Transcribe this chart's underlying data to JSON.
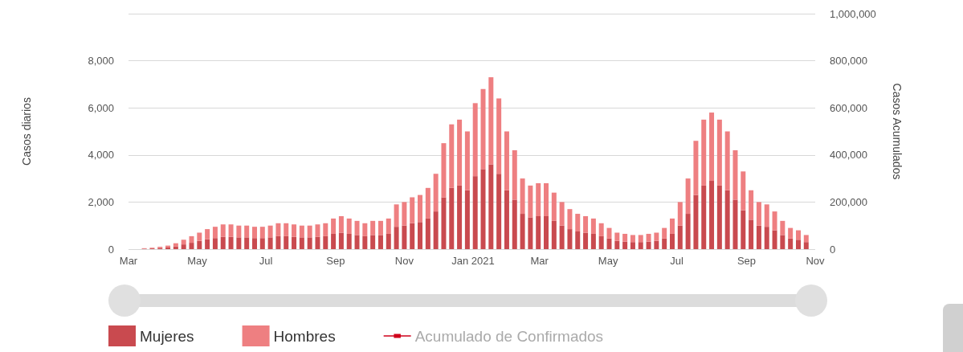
{
  "chart_data": {
    "type": "bar",
    "stacked": true,
    "ylabel": "Casos diarios",
    "y2label": "Casos Acumulados",
    "x": [
      "2020-03-01",
      "2020-03-08",
      "2020-03-15",
      "2020-03-22",
      "2020-03-29",
      "2020-04-05",
      "2020-04-12",
      "2020-04-19",
      "2020-04-26",
      "2020-05-03",
      "2020-05-10",
      "2020-05-17",
      "2020-05-24",
      "2020-05-31",
      "2020-06-07",
      "2020-06-14",
      "2020-06-21",
      "2020-06-28",
      "2020-07-05",
      "2020-07-12",
      "2020-07-19",
      "2020-07-26",
      "2020-08-02",
      "2020-08-09",
      "2020-08-16",
      "2020-08-23",
      "2020-08-30",
      "2020-09-06",
      "2020-09-13",
      "2020-09-20",
      "2020-09-27",
      "2020-10-04",
      "2020-10-11",
      "2020-10-18",
      "2020-10-25",
      "2020-11-01",
      "2020-11-08",
      "2020-11-15",
      "2020-11-22",
      "2020-11-29",
      "2020-12-06",
      "2020-12-13",
      "2020-12-20",
      "2020-12-27",
      "2021-01-03",
      "2021-01-10",
      "2021-01-17",
      "2021-01-24",
      "2021-01-31",
      "2021-02-07",
      "2021-02-14",
      "2021-02-21",
      "2021-02-28",
      "2021-03-07",
      "2021-03-14",
      "2021-03-21",
      "2021-03-28",
      "2021-04-04",
      "2021-04-11",
      "2021-04-18",
      "2021-04-25",
      "2021-05-02",
      "2021-05-09",
      "2021-05-16",
      "2021-05-23",
      "2021-05-30",
      "2021-06-06",
      "2021-06-13",
      "2021-06-20",
      "2021-06-27",
      "2021-07-04",
      "2021-07-11",
      "2021-07-18",
      "2021-07-25",
      "2021-08-01",
      "2021-08-08",
      "2021-08-15",
      "2021-08-22",
      "2021-08-29",
      "2021-09-05",
      "2021-09-12",
      "2021-09-19",
      "2021-09-26",
      "2021-10-03",
      "2021-10-10",
      "2021-10-17",
      "2021-10-24"
    ],
    "series": [
      {
        "name": "Mujeres",
        "color": "#c94a4f",
        "values": [
          0,
          0,
          20,
          30,
          50,
          70,
          120,
          200,
          270,
          350,
          420,
          470,
          520,
          520,
          500,
          500,
          470,
          470,
          500,
          550,
          550,
          520,
          500,
          500,
          520,
          550,
          650,
          700,
          650,
          600,
          550,
          600,
          600,
          650,
          950,
          1000,
          1100,
          1150,
          1300,
          1600,
          2200,
          2600,
          2700,
          2500,
          3100,
          3400,
          3600,
          3200,
          2500,
          2100,
          1500,
          1350,
          1400,
          1400,
          1200,
          1000,
          850,
          750,
          700,
          650,
          550,
          450,
          350,
          320,
          300,
          300,
          320,
          350,
          450,
          650,
          1000,
          1500,
          2300,
          2700,
          2900,
          2700,
          2500,
          2100,
          1650,
          1250,
          1000,
          950,
          800,
          600,
          450,
          400,
          300
        ]
      },
      {
        "name": "Hombres",
        "color": "#ee7f81",
        "values": [
          0,
          0,
          20,
          30,
          50,
          80,
          130,
          200,
          280,
          350,
          430,
          480,
          530,
          530,
          500,
          500,
          480,
          480,
          500,
          550,
          550,
          530,
          500,
          500,
          530,
          550,
          650,
          700,
          650,
          600,
          550,
          600,
          600,
          650,
          950,
          1000,
          1100,
          1150,
          1300,
          1600,
          2300,
          2700,
          2800,
          2500,
          3100,
          3400,
          3700,
          3200,
          2500,
          2100,
          1500,
          1350,
          1400,
          1400,
          1200,
          1000,
          850,
          750,
          700,
          650,
          550,
          450,
          350,
          330,
          300,
          300,
          330,
          350,
          450,
          650,
          1000,
          1500,
          2300,
          2800,
          2900,
          2800,
          2500,
          2100,
          1650,
          1250,
          1000,
          950,
          800,
          600,
          450,
          400,
          300
        ]
      },
      {
        "name": "Acumulado de Confirmados",
        "type": "line",
        "color": "#d0021b",
        "values": [
          null,
          null,
          null,
          null,
          null,
          null,
          null,
          null,
          null,
          null,
          null,
          null,
          null,
          null,
          null,
          null,
          null,
          null,
          null,
          null,
          null,
          null,
          null,
          null,
          null,
          null,
          null,
          null,
          null,
          null,
          null,
          null,
          null,
          null,
          null,
          null,
          null,
          null,
          null,
          null,
          null,
          null,
          null,
          null,
          null,
          null,
          null,
          null,
          null,
          null,
          null,
          null,
          null,
          null,
          null,
          null,
          null,
          null,
          null,
          null,
          null,
          null,
          null,
          null,
          null,
          null,
          null,
          null,
          null,
          null,
          null,
          null,
          null,
          null,
          null,
          null,
          null,
          null,
          null,
          null,
          null,
          null,
          null,
          null,
          null,
          null,
          null
        ]
      }
    ],
    "xlim": [
      "2020-03-01",
      "2021-11-01"
    ],
    "xticks": [
      {
        "value": "2020-03-01",
        "label": "Mar"
      },
      {
        "value": "2020-05-01",
        "label": "May"
      },
      {
        "value": "2020-07-01",
        "label": "Jul"
      },
      {
        "value": "2020-09-01",
        "label": "Sep"
      },
      {
        "value": "2020-11-01",
        "label": "Nov"
      },
      {
        "value": "2021-01-01",
        "label": "Jan 2021"
      },
      {
        "value": "2021-03-01",
        "label": "Mar"
      },
      {
        "value": "2021-05-01",
        "label": "May"
      },
      {
        "value": "2021-07-01",
        "label": "Jul"
      },
      {
        "value": "2021-09-01",
        "label": "Sep"
      },
      {
        "value": "2021-11-01",
        "label": "Nov"
      }
    ],
    "ylim": [
      0,
      10000
    ],
    "yticks": [
      0,
      {
        "value": 2000,
        "label": "2,000"
      },
      {
        "value": 4000,
        "label": "4,000"
      },
      {
        "value": 6000,
        "label": "6,000"
      },
      {
        "value": 8000,
        "label": "8,000"
      },
      {
        "value": 10000,
        "label": null
      }
    ],
    "y2lim": [
      0,
      1000000
    ],
    "y2ticks": [
      0,
      {
        "value": 200000,
        "label": "200,000"
      },
      {
        "value": 400000,
        "label": "400,000"
      },
      {
        "value": 600000,
        "label": "600,000"
      },
      {
        "value": 800000,
        "label": "800,000"
      },
      {
        "value": 1000000,
        "label": "1,000,000"
      }
    ],
    "grid": "y",
    "legend": "bottom"
  }
}
